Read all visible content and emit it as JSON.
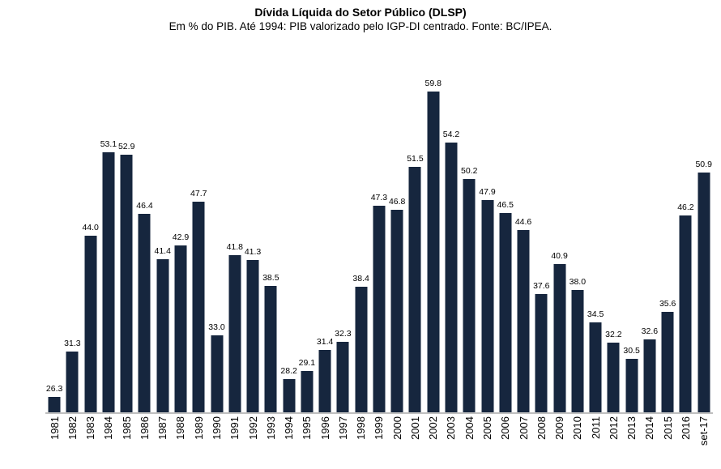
{
  "header": {
    "title": "Dívida Líquida do Setor Público (DLSP)",
    "subtitle": "Em % do PIB. Até 1994: PIB valorizado pelo IGP-DI centrado. Fonte: BC/IPEA."
  },
  "chart_data": {
    "type": "bar",
    "title": "Dívida Líquida do Setor Público (DLSP)",
    "subtitle": "Em % do PIB. Até 1994: PIB valorizado pelo IGP-DI centrado. Fonte: BC/IPEA.",
    "categories": [
      "1981",
      "1982",
      "1983",
      "1984",
      "1985",
      "1986",
      "1987",
      "1988",
      "1989",
      "1990",
      "1991",
      "1992",
      "1993",
      "1994",
      "1995",
      "1996",
      "1997",
      "1998",
      "1999",
      "2000",
      "2001",
      "2002",
      "2003",
      "2004",
      "2005",
      "2006",
      "2007",
      "2008",
      "2009",
      "2010",
      "2011",
      "2012",
      "2013",
      "2014",
      "2015",
      "2016",
      "set-17"
    ],
    "values": [
      26.3,
      31.3,
      44.0,
      53.1,
      52.9,
      46.4,
      41.4,
      42.9,
      47.7,
      33.0,
      41.8,
      41.3,
      38.5,
      28.2,
      29.1,
      31.4,
      32.3,
      38.4,
      47.3,
      46.8,
      51.5,
      59.8,
      54.2,
      50.2,
      47.9,
      46.5,
      44.6,
      37.6,
      40.9,
      38.0,
      34.5,
      32.2,
      30.5,
      32.6,
      35.6,
      46.2,
      50.9
    ],
    "xlabel": "",
    "ylabel": "",
    "ylim_effective": [
      24.5,
      60
    ],
    "grid": false,
    "legend": false,
    "data_labels": true,
    "decimals": 1,
    "bar_color": "#16263E",
    "axis_line_color": "#BFBFBF",
    "text_color": "#000000"
  }
}
